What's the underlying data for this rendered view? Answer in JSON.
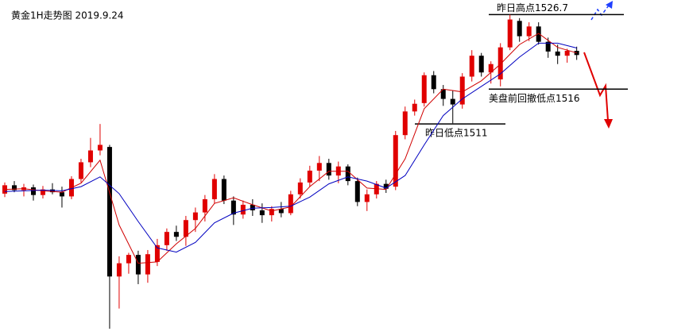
{
  "chart_data": {
    "type": "candlestick",
    "title": "黄金1H走势图 2019.9.24",
    "up_color": "#e00000",
    "down_color": "#000000",
    "xlim": [
      -0.5,
      72.2
    ],
    "ylim": [
      1480.7,
      1528.8
    ],
    "ohlc": [
      [
        1501.0,
        1502.6,
        1500.5,
        1502.2
      ],
      [
        1502.2,
        1502.8,
        1501.2,
        1501.5
      ],
      [
        1501.5,
        1502.4,
        1500.6,
        1501.9
      ],
      [
        1501.9,
        1502.3,
        1500.0,
        1500.8
      ],
      [
        1500.8,
        1502.1,
        1500.3,
        1501.6
      ],
      [
        1501.6,
        1502.5,
        1500.9,
        1501.2
      ],
      [
        1501.2,
        1502.0,
        1499.0,
        1500.6
      ],
      [
        1500.6,
        1503.5,
        1500.2,
        1503.1
      ],
      [
        1503.1,
        1506.0,
        1502.6,
        1505.5
      ],
      [
        1505.5,
        1509.0,
        1504.8,
        1507.2
      ],
      [
        1507.2,
        1511.0,
        1506.5,
        1508.0
      ],
      [
        1507.7,
        1508.0,
        1481.6,
        1489.1
      ],
      [
        1489.1,
        1492.0,
        1484.5,
        1491.0
      ],
      [
        1491.0,
        1492.5,
        1489.5,
        1492.2
      ],
      [
        1492.2,
        1492.8,
        1488.0,
        1489.4
      ],
      [
        1489.4,
        1492.9,
        1488.2,
        1492.3
      ],
      [
        1491.2,
        1494.5,
        1490.6,
        1493.6
      ],
      [
        1493.6,
        1496.0,
        1492.8,
        1495.5
      ],
      [
        1495.5,
        1496.4,
        1494.2,
        1494.8
      ],
      [
        1494.8,
        1497.8,
        1493.5,
        1497.2
      ],
      [
        1497.2,
        1499.0,
        1495.5,
        1498.3
      ],
      [
        1498.3,
        1500.8,
        1497.0,
        1500.2
      ],
      [
        1500.2,
        1503.8,
        1499.6,
        1503.1
      ],
      [
        1503.1,
        1503.6,
        1499.5,
        1500.0
      ],
      [
        1500.0,
        1500.6,
        1496.5,
        1498.0
      ],
      [
        1498.0,
        1500.0,
        1497.4,
        1499.4
      ],
      [
        1499.4,
        1500.2,
        1497.8,
        1498.6
      ],
      [
        1498.6,
        1499.6,
        1496.8,
        1497.9
      ],
      [
        1497.9,
        1499.2,
        1497.0,
        1498.8
      ],
      [
        1498.8,
        1499.8,
        1497.6,
        1498.2
      ],
      [
        1498.2,
        1501.4,
        1497.9,
        1500.9
      ],
      [
        1500.9,
        1503.2,
        1500.3,
        1502.6
      ],
      [
        1502.6,
        1505.0,
        1502.0,
        1504.3
      ],
      [
        1504.3,
        1506.4,
        1502.8,
        1505.4
      ],
      [
        1505.4,
        1506.0,
        1503.0,
        1503.6
      ],
      [
        1503.6,
        1505.6,
        1502.5,
        1504.9
      ],
      [
        1504.9,
        1505.2,
        1502.2,
        1502.8
      ],
      [
        1502.8,
        1503.3,
        1499.2,
        1499.8
      ],
      [
        1499.8,
        1501.6,
        1498.5,
        1500.9
      ],
      [
        1500.9,
        1502.8,
        1500.3,
        1502.4
      ],
      [
        1502.4,
        1503.0,
        1501.1,
        1501.7
      ],
      [
        1502.0,
        1510.0,
        1501.5,
        1509.4
      ],
      [
        1509.4,
        1513.5,
        1508.8,
        1512.8
      ],
      [
        1512.8,
        1514.5,
        1512.2,
        1513.9
      ],
      [
        1514.0,
        1518.4,
        1513.5,
        1518.0
      ],
      [
        1518.0,
        1518.6,
        1515.4,
        1516.0
      ],
      [
        1516.0,
        1516.6,
        1513.6,
        1514.6
      ],
      [
        1514.6,
        1515.8,
        1511.1,
        1513.8
      ],
      [
        1513.8,
        1518.3,
        1513.2,
        1517.8
      ],
      [
        1517.8,
        1521.6,
        1517.1,
        1520.8
      ],
      [
        1520.8,
        1521.2,
        1517.8,
        1518.4
      ],
      [
        1518.4,
        1520.0,
        1516.8,
        1519.6
      ],
      [
        1517.4,
        1522.6,
        1516.4,
        1522.0
      ],
      [
        1522.0,
        1526.7,
        1521.6,
        1526.0
      ],
      [
        1525.8,
        1526.2,
        1522.8,
        1523.6
      ],
      [
        1523.6,
        1525.6,
        1522.9,
        1525.0
      ],
      [
        1525.0,
        1525.6,
        1522.4,
        1522.8
      ],
      [
        1522.8,
        1523.4,
        1520.5,
        1521.4
      ],
      [
        1521.4,
        1522.4,
        1519.6,
        1520.8
      ],
      [
        1520.8,
        1521.8,
        1519.8,
        1521.5
      ],
      [
        1521.5,
        1522.1,
        1520.2,
        1520.9
      ]
    ],
    "lines": [
      {
        "color": "#d00000",
        "x": [
          0,
          2,
          4,
          6,
          8,
          10,
          12,
          14,
          16,
          18,
          20,
          22,
          24,
          26,
          28,
          30,
          32,
          34,
          36,
          38,
          40,
          42,
          44,
          46,
          48,
          50,
          52,
          54,
          56,
          58,
          60
        ],
        "values": [
          1501.6,
          1501.7,
          1501.4,
          1501.2,
          1502.5,
          1505.8,
          1496.5,
          1491.0,
          1491.2,
          1493.8,
          1496.0,
          1499.6,
          1500.4,
          1499.4,
          1498.5,
          1499.1,
          1502.0,
          1504.2,
          1504.2,
          1501.8,
          1501.6,
          1506.0,
          1513.2,
          1516.0,
          1515.6,
          1517.2,
          1519.6,
          1522.4,
          1524.0,
          1522.0,
          1521.2
        ]
      },
      {
        "color": "#0000c0",
        "x": [
          0,
          2,
          4,
          6,
          8,
          10,
          12,
          14,
          16,
          18,
          20,
          22,
          24,
          26,
          28,
          30,
          32,
          34,
          36,
          38,
          40,
          42,
          44,
          46,
          48,
          50,
          52,
          54,
          56,
          58,
          60
        ],
        "values": [
          1501.3,
          1501.4,
          1501.5,
          1501.4,
          1502.0,
          1503.4,
          1501.0,
          1497.0,
          1493.2,
          1492.6,
          1494.0,
          1496.8,
          1498.2,
          1498.9,
          1499.0,
          1499.2,
          1500.5,
          1502.4,
          1503.4,
          1502.8,
          1501.8,
          1503.6,
          1508.0,
          1512.2,
          1514.6,
          1516.4,
          1518.2,
          1520.6,
          1522.6,
          1522.6,
          1521.9
        ]
      }
    ],
    "levels": [
      {
        "label": "昨日高点1526.7",
        "value": 1526.7
      },
      {
        "label": "美盘前回撤低点1516",
        "value": 1516
      },
      {
        "label": "昨日低点1511",
        "value": 1511
      }
    ]
  }
}
